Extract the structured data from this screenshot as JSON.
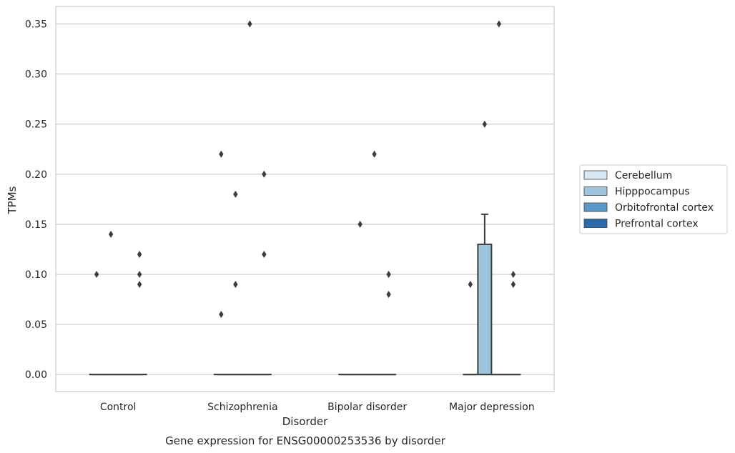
{
  "caption": "Gene expression for ENSG00000253536 by disorder",
  "chart_data": {
    "type": "box",
    "xlabel": "Disorder",
    "ylabel": "TPMs",
    "ylim": [
      -0.017,
      0.3675
    ],
    "yticks": [
      0.0,
      0.05,
      0.1,
      0.15,
      0.2,
      0.25,
      0.3,
      0.35
    ],
    "ytick_labels": [
      "0.00",
      "0.05",
      "0.10",
      "0.15",
      "0.20",
      "0.25",
      "0.30",
      "0.35"
    ],
    "grid": true,
    "legend_position": "right",
    "categories": [
      "Control",
      "Schizophrenia",
      "Bipolar disorder",
      "Major depression"
    ],
    "series": [
      {
        "name": "Cerebellum",
        "color": "#d8e7f4",
        "boxes": [
          {
            "category": "Control",
            "q1": 0,
            "median": 0,
            "q3": 0,
            "whisker_low": 0,
            "whisker_high": 0,
            "outliers": [
              0.1
            ]
          },
          {
            "category": "Schizophrenia",
            "q1": 0,
            "median": 0,
            "q3": 0,
            "whisker_low": 0,
            "whisker_high": 0,
            "outliers": [
              0.22,
              0.06
            ]
          },
          {
            "category": "Bipolar disorder",
            "q1": 0,
            "median": 0,
            "q3": 0,
            "whisker_low": 0,
            "whisker_high": 0,
            "outliers": []
          },
          {
            "category": "Major depression",
            "q1": 0,
            "median": 0,
            "q3": 0,
            "whisker_low": 0,
            "whisker_high": 0,
            "outliers": [
              0.09
            ]
          }
        ]
      },
      {
        "name": "Hipppocampus",
        "color": "#9fc5dd",
        "boxes": [
          {
            "category": "Control",
            "q1": 0,
            "median": 0,
            "q3": 0,
            "whisker_low": 0,
            "whisker_high": 0,
            "outliers": [
              0.14
            ]
          },
          {
            "category": "Schizophrenia",
            "q1": 0,
            "median": 0,
            "q3": 0,
            "whisker_low": 0,
            "whisker_high": 0,
            "outliers": [
              0.18,
              0.09
            ]
          },
          {
            "category": "Bipolar disorder",
            "q1": 0,
            "median": 0,
            "q3": 0,
            "whisker_low": 0,
            "whisker_high": 0,
            "outliers": [
              0.15
            ]
          },
          {
            "category": "Major depression",
            "q1": 0,
            "median": 0,
            "q3": 0.13,
            "whisker_low": 0,
            "whisker_high": 0.16,
            "outliers": [
              0.25
            ]
          }
        ]
      },
      {
        "name": "Orbitofrontal cortex",
        "color": "#5a9ac8",
        "boxes": [
          {
            "category": "Control",
            "q1": 0,
            "median": 0,
            "q3": 0,
            "whisker_low": 0,
            "whisker_high": 0,
            "outliers": []
          },
          {
            "category": "Schizophrenia",
            "q1": 0,
            "median": 0,
            "q3": 0,
            "whisker_low": 0,
            "whisker_high": 0,
            "outliers": [
              0.35
            ]
          },
          {
            "category": "Bipolar disorder",
            "q1": 0,
            "median": 0,
            "q3": 0,
            "whisker_low": 0,
            "whisker_high": 0,
            "outliers": [
              0.22
            ]
          },
          {
            "category": "Major depression",
            "q1": 0,
            "median": 0,
            "q3": 0,
            "whisker_low": 0,
            "whisker_high": 0,
            "outliers": [
              0.35
            ]
          }
        ]
      },
      {
        "name": "Prefrontal cortex",
        "color": "#2a6aa9",
        "boxes": [
          {
            "category": "Control",
            "q1": 0,
            "median": 0,
            "q3": 0,
            "whisker_low": 0,
            "whisker_high": 0,
            "outliers": [
              0.12,
              0.1,
              0.09
            ]
          },
          {
            "category": "Schizophrenia",
            "q1": 0,
            "median": 0,
            "q3": 0,
            "whisker_low": 0,
            "whisker_high": 0,
            "outliers": [
              0.2,
              0.12
            ]
          },
          {
            "category": "Bipolar disorder",
            "q1": 0,
            "median": 0,
            "q3": 0,
            "whisker_low": 0,
            "whisker_high": 0,
            "outliers": [
              0.1,
              0.08
            ]
          },
          {
            "category": "Major depression",
            "q1": 0,
            "median": 0,
            "q3": 0,
            "whisker_low": 0,
            "whisker_high": 0,
            "outliers": [
              0.1,
              0.09
            ]
          }
        ]
      }
    ]
  },
  "colors": {
    "grid": "#cccccc",
    "frame": "#cccccc",
    "box_edge": "#3d3d3d",
    "outlier": "#3d3d3d"
  }
}
